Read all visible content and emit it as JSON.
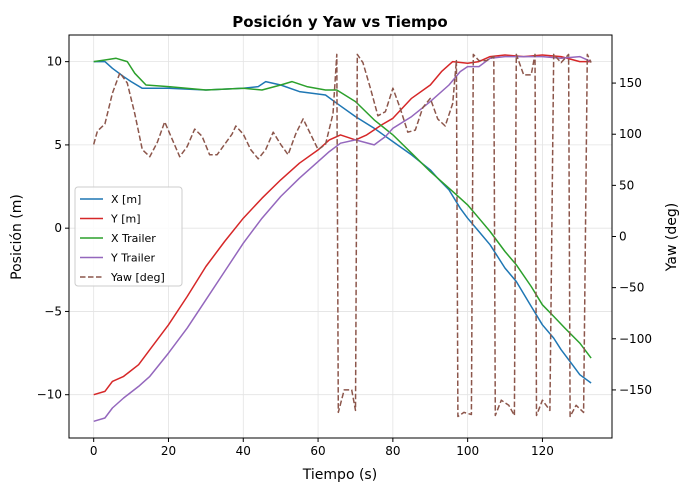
{
  "chart_data": {
    "type": "line",
    "title": "Posición y Yaw vs Tiempo",
    "xlabel": "Tiempo (s)",
    "ylabel": "Posición (m)",
    "y2label": "Yaw (deg)",
    "xlim": [
      -6.6,
      138.6
    ],
    "ylim": [
      -12.6,
      11.6
    ],
    "y2lim": [
      -197,
      197
    ],
    "xticks": [
      0,
      20,
      40,
      60,
      80,
      100,
      120
    ],
    "yticks": [
      -10,
      -5,
      0,
      5,
      10
    ],
    "y2ticks": [
      -150,
      -100,
      -50,
      0,
      50,
      100,
      150
    ],
    "grid": true,
    "legend_position": "center-left",
    "series": [
      {
        "name": "X [m]",
        "color": "#1f77b4",
        "dash": "solid",
        "axis": "left",
        "points": [
          [
            0,
            10.0
          ],
          [
            3,
            10.0
          ],
          [
            5,
            9.6
          ],
          [
            8,
            9.1
          ],
          [
            10,
            8.8
          ],
          [
            13,
            8.4
          ],
          [
            20,
            8.4
          ],
          [
            30,
            8.3
          ],
          [
            40,
            8.4
          ],
          [
            44,
            8.5
          ],
          [
            46,
            8.8
          ],
          [
            50,
            8.6
          ],
          [
            55,
            8.2
          ],
          [
            62,
            8.0
          ],
          [
            65,
            7.5
          ],
          [
            70,
            6.7
          ],
          [
            75,
            6.0
          ],
          [
            80,
            5.2
          ],
          [
            85,
            4.4
          ],
          [
            90,
            3.5
          ],
          [
            92,
            3.0
          ],
          [
            95,
            2.3
          ],
          [
            98,
            1.2
          ],
          [
            100,
            0.6
          ],
          [
            103,
            -0.2
          ],
          [
            106,
            -1.0
          ],
          [
            110,
            -2.4
          ],
          [
            113,
            -3.2
          ],
          [
            117,
            -4.7
          ],
          [
            120,
            -5.8
          ],
          [
            123,
            -6.6
          ],
          [
            125,
            -7.3
          ],
          [
            128,
            -8.2
          ],
          [
            130,
            -8.8
          ],
          [
            133,
            -9.3
          ]
        ]
      },
      {
        "name": "Y [m]",
        "color": "#d62728",
        "dash": "solid",
        "axis": "left",
        "points": [
          [
            0,
            -10.0
          ],
          [
            3,
            -9.8
          ],
          [
            5,
            -9.2
          ],
          [
            8,
            -8.9
          ],
          [
            12,
            -8.2
          ],
          [
            15,
            -7.3
          ],
          [
            20,
            -5.8
          ],
          [
            25,
            -4.1
          ],
          [
            30,
            -2.3
          ],
          [
            35,
            -0.8
          ],
          [
            40,
            0.6
          ],
          [
            45,
            1.8
          ],
          [
            50,
            2.9
          ],
          [
            55,
            3.9
          ],
          [
            60,
            4.7
          ],
          [
            63,
            5.3
          ],
          [
            66,
            5.6
          ],
          [
            70,
            5.3
          ],
          [
            73,
            5.6
          ],
          [
            77,
            6.2
          ],
          [
            80,
            6.6
          ],
          [
            85,
            7.8
          ],
          [
            90,
            8.6
          ],
          [
            93,
            9.4
          ],
          [
            96,
            10.0
          ],
          [
            100,
            9.9
          ],
          [
            103,
            10.0
          ],
          [
            106,
            10.3
          ],
          [
            110,
            10.4
          ],
          [
            115,
            10.3
          ],
          [
            120,
            10.4
          ],
          [
            125,
            10.3
          ],
          [
            130,
            10.0
          ],
          [
            133,
            10.0
          ]
        ]
      },
      {
        "name": "X Trailer",
        "color": "#2ca02c",
        "dash": "solid",
        "axis": "left",
        "points": [
          [
            0,
            10.0
          ],
          [
            3,
            10.1
          ],
          [
            6,
            10.2
          ],
          [
            9,
            10.0
          ],
          [
            11,
            9.3
          ],
          [
            14,
            8.6
          ],
          [
            20,
            8.5
          ],
          [
            30,
            8.3
          ],
          [
            40,
            8.4
          ],
          [
            45,
            8.3
          ],
          [
            50,
            8.6
          ],
          [
            53,
            8.8
          ],
          [
            57,
            8.5
          ],
          [
            62,
            8.3
          ],
          [
            65,
            8.3
          ],
          [
            70,
            7.6
          ],
          [
            75,
            6.5
          ],
          [
            80,
            5.6
          ],
          [
            85,
            4.5
          ],
          [
            90,
            3.4
          ],
          [
            95,
            2.4
          ],
          [
            98,
            1.8
          ],
          [
            100,
            1.4
          ],
          [
            103,
            0.6
          ],
          [
            106,
            -0.2
          ],
          [
            110,
            -1.4
          ],
          [
            113,
            -2.2
          ],
          [
            117,
            -3.5
          ],
          [
            120,
            -4.6
          ],
          [
            123,
            -5.3
          ],
          [
            126,
            -6.0
          ],
          [
            130,
            -6.9
          ],
          [
            133,
            -7.8
          ]
        ]
      },
      {
        "name": "Y Trailer",
        "color": "#9467bd",
        "dash": "solid",
        "axis": "left",
        "points": [
          [
            0,
            -11.6
          ],
          [
            3,
            -11.4
          ],
          [
            5,
            -10.8
          ],
          [
            8,
            -10.2
          ],
          [
            12,
            -9.5
          ],
          [
            15,
            -8.9
          ],
          [
            20,
            -7.5
          ],
          [
            25,
            -6.0
          ],
          [
            30,
            -4.3
          ],
          [
            35,
            -2.6
          ],
          [
            40,
            -0.9
          ],
          [
            45,
            0.6
          ],
          [
            50,
            1.9
          ],
          [
            55,
            3.0
          ],
          [
            60,
            4.0
          ],
          [
            63,
            4.6
          ],
          [
            66,
            5.1
          ],
          [
            70,
            5.3
          ],
          [
            75,
            5.0
          ],
          [
            78,
            5.5
          ],
          [
            80,
            6.0
          ],
          [
            85,
            6.7
          ],
          [
            90,
            7.6
          ],
          [
            95,
            8.6
          ],
          [
            98,
            9.4
          ],
          [
            100,
            9.7
          ],
          [
            103,
            9.7
          ],
          [
            106,
            10.2
          ],
          [
            110,
            10.3
          ],
          [
            115,
            10.3
          ],
          [
            120,
            10.3
          ],
          [
            125,
            10.2
          ],
          [
            130,
            10.3
          ],
          [
            133,
            10.0
          ]
        ]
      },
      {
        "name": "Yaw [deg]",
        "color": "#8c564b",
        "dash": "dashed",
        "axis": "right",
        "points": [
          [
            0,
            90
          ],
          [
            1,
            103
          ],
          [
            3,
            110
          ],
          [
            5,
            140
          ],
          [
            7,
            160
          ],
          [
            9,
            150
          ],
          [
            11,
            120
          ],
          [
            13,
            85
          ],
          [
            15,
            78
          ],
          [
            17,
            92
          ],
          [
            19,
            112
          ],
          [
            21,
            95
          ],
          [
            23,
            78
          ],
          [
            25,
            88
          ],
          [
            27,
            105
          ],
          [
            29,
            98
          ],
          [
            31,
            80
          ],
          [
            33,
            80
          ],
          [
            35,
            90
          ],
          [
            37,
            100
          ],
          [
            38,
            108
          ],
          [
            40,
            100
          ],
          [
            42,
            85
          ],
          [
            44,
            76
          ],
          [
            46,
            85
          ],
          [
            48,
            102
          ],
          [
            50,
            90
          ],
          [
            52,
            80
          ],
          [
            54,
            100
          ],
          [
            56,
            115
          ],
          [
            58,
            100
          ],
          [
            60,
            85
          ],
          [
            62,
            90
          ],
          [
            64,
            120
          ],
          [
            65,
            178
          ],
          [
            65.4,
            -172
          ],
          [
            67,
            -150
          ],
          [
            69,
            -150
          ],
          [
            70,
            -170
          ],
          [
            70.5,
            178
          ],
          [
            72,
            170
          ],
          [
            74,
            145
          ],
          [
            76,
            118
          ],
          [
            78,
            122
          ],
          [
            80,
            145
          ],
          [
            82,
            125
          ],
          [
            84,
            102
          ],
          [
            86,
            104
          ],
          [
            88,
            126
          ],
          [
            90,
            135
          ],
          [
            92,
            115
          ],
          [
            94,
            108
          ],
          [
            96,
            130
          ],
          [
            97,
            172
          ],
          [
            97.4,
            -176
          ],
          [
            99,
            -172
          ],
          [
            101,
            -174
          ],
          [
            101.5,
            178
          ],
          [
            103,
            172
          ],
          [
            105,
            172
          ],
          [
            107,
            176
          ],
          [
            107.4,
            -175
          ],
          [
            109,
            -160
          ],
          [
            111,
            -165
          ],
          [
            112.5,
            -175
          ],
          [
            113,
            178
          ],
          [
            115,
            158
          ],
          [
            117,
            158
          ],
          [
            118,
            178
          ],
          [
            118.4,
            -175
          ],
          [
            120,
            -160
          ],
          [
            122,
            -170
          ],
          [
            123,
            178
          ],
          [
            125,
            170
          ],
          [
            127,
            178
          ],
          [
            127.4,
            -176
          ],
          [
            129,
            -165
          ],
          [
            131,
            -172
          ],
          [
            132,
            178
          ],
          [
            133,
            170
          ]
        ]
      }
    ]
  }
}
